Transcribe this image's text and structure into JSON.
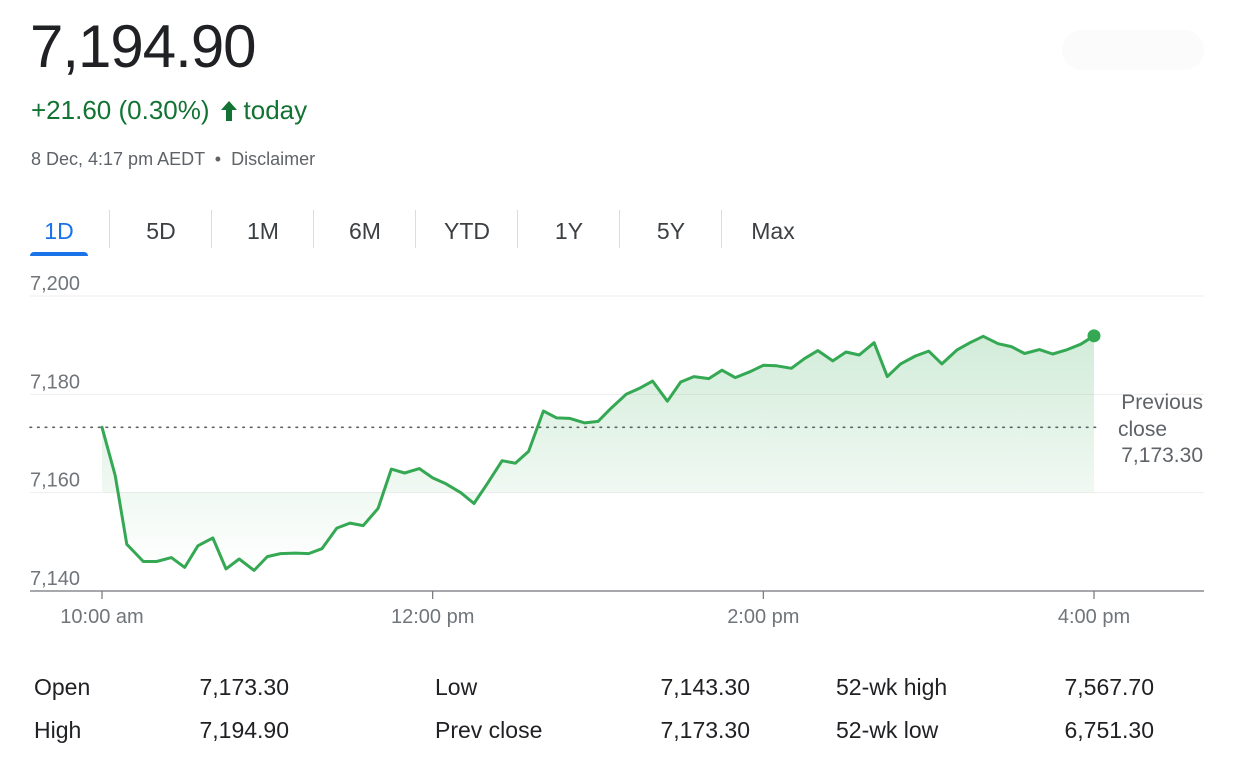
{
  "quote": {
    "price": "7,194.90",
    "change": "+21.60 (0.30%)",
    "change_suffix": "today",
    "timestamp": "8 Dec, 4:17 pm AEDT",
    "separator": "•",
    "disclaimer": "Disclaimer",
    "up_color": "#137333"
  },
  "tabs": [
    {
      "label": "1D",
      "active": true
    },
    {
      "label": "5D",
      "active": false
    },
    {
      "label": "1M",
      "active": false
    },
    {
      "label": "6M",
      "active": false
    },
    {
      "label": "YTD",
      "active": false
    },
    {
      "label": "1Y",
      "active": false
    },
    {
      "label": "5Y",
      "active": false
    },
    {
      "label": "Max",
      "active": false
    }
  ],
  "chart_data": {
    "type": "area",
    "title": "",
    "xlabel": "",
    "ylabel": "",
    "x_ticks": [
      {
        "value": 10,
        "label": "10:00 am"
      },
      {
        "value": 12,
        "label": "12:00 pm"
      },
      {
        "value": 14,
        "label": "2:00 pm"
      },
      {
        "value": 16,
        "label": "4:00 pm"
      }
    ],
    "y_ticks": [
      "7,140",
      "7,160",
      "7,180",
      "7,200"
    ],
    "y_tick_values": [
      7140,
      7160,
      7180,
      7200
    ],
    "xlim": [
      10,
      16.67
    ],
    "ylim": [
      7140,
      7200
    ],
    "previous_close": 7173.3,
    "previous_close_label": [
      "Previous",
      "close",
      "7,173.30"
    ],
    "line_color": "#34a853",
    "series": [
      {
        "x": [
          10.0,
          10.08,
          10.15,
          10.25,
          10.33,
          10.42,
          10.5,
          10.58,
          10.67,
          10.75,
          10.83,
          10.92,
          11.0,
          11.08,
          11.17,
          11.25,
          11.33,
          11.42,
          11.5,
          11.58,
          11.67,
          11.75,
          11.83,
          11.92,
          12.0,
          12.08,
          12.17,
          12.25,
          12.33,
          12.42,
          12.5,
          12.58,
          12.67,
          12.75,
          12.83,
          12.92,
          13.0,
          13.08,
          13.17,
          13.25,
          13.33,
          13.42,
          13.5,
          13.58,
          13.67,
          13.75,
          13.83,
          13.92,
          14.0,
          14.08,
          14.17,
          14.25,
          14.33,
          14.42,
          14.5,
          14.58,
          14.67,
          14.75,
          14.83,
          14.92,
          15.0,
          15.08,
          15.17,
          15.25,
          15.33,
          15.42,
          15.5,
          15.58,
          15.67,
          15.75,
          15.83,
          15.92,
          16.0
        ],
        "y": [
          7173.3,
          7163.5,
          7149.5,
          7146.0,
          7146.0,
          7146.8,
          7144.8,
          7149.2,
          7150.8,
          7144.5,
          7146.5,
          7144.2,
          7147.0,
          7147.6,
          7147.7,
          7147.6,
          7148.6,
          7152.8,
          7153.8,
          7153.3,
          7156.8,
          7164.8,
          7164.0,
          7164.9,
          7163.0,
          7161.8,
          7160.0,
          7157.8,
          7161.8,
          7166.5,
          7166.0,
          7168.4,
          7176.6,
          7175.2,
          7175.1,
          7174.2,
          7174.5,
          7177.2,
          7180.0,
          7181.2,
          7182.7,
          7178.6,
          7182.5,
          7183.6,
          7183.2,
          7184.9,
          7183.4,
          7184.6,
          7185.9,
          7185.8,
          7185.3,
          7187.3,
          7188.9,
          7186.8,
          7188.6,
          7188.0,
          7190.5,
          7183.6,
          7186.2,
          7187.8,
          7188.8,
          7186.2,
          7189.0,
          7190.5,
          7191.8,
          7190.3,
          7189.7,
          7188.3,
          7189.1,
          7188.2,
          7189.0,
          7190.2,
          7191.9
        ]
      }
    ]
  },
  "stats": [
    {
      "label": "Open",
      "value": "7,173.30"
    },
    {
      "label": "High",
      "value": "7,194.90"
    },
    {
      "label": "Low",
      "value": "7,143.30"
    },
    {
      "label": "Prev close",
      "value": "7,173.30"
    },
    {
      "label": "52-wk high",
      "value": "7,567.70"
    },
    {
      "label": "52-wk low",
      "value": "6,751.30"
    }
  ]
}
